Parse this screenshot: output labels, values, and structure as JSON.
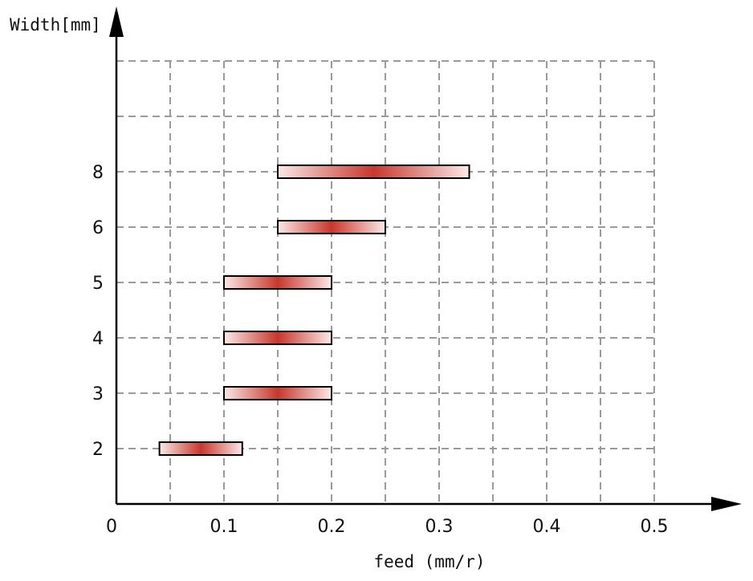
{
  "chart_data": {
    "type": "bar",
    "orientation": "horizontal-range",
    "xlabel": "feed (mm/r)",
    "ylabel": "Width[mm]",
    "x_tick_labels": [
      "0",
      "0.1",
      "0.2",
      "0.3",
      "0.4",
      "0.5"
    ],
    "xlim": [
      0,
      0.5
    ],
    "grid": true,
    "categories": [
      "2",
      "3",
      "4",
      "5",
      "6",
      "8"
    ],
    "ranges": [
      {
        "category": "2",
        "start": 0.04,
        "end": 0.117
      },
      {
        "category": "3",
        "start": 0.1,
        "end": 0.2
      },
      {
        "category": "4",
        "start": 0.1,
        "end": 0.2
      },
      {
        "category": "5",
        "start": 0.1,
        "end": 0.2
      },
      {
        "category": "6",
        "start": 0.15,
        "end": 0.25
      },
      {
        "category": "8",
        "start": 0.15,
        "end": 0.328
      }
    ],
    "colors": {
      "bar_center": "#c8372d",
      "bar_edge": "#fbe9e7",
      "grid": "#9a9a9a",
      "axis": "#000000"
    }
  }
}
